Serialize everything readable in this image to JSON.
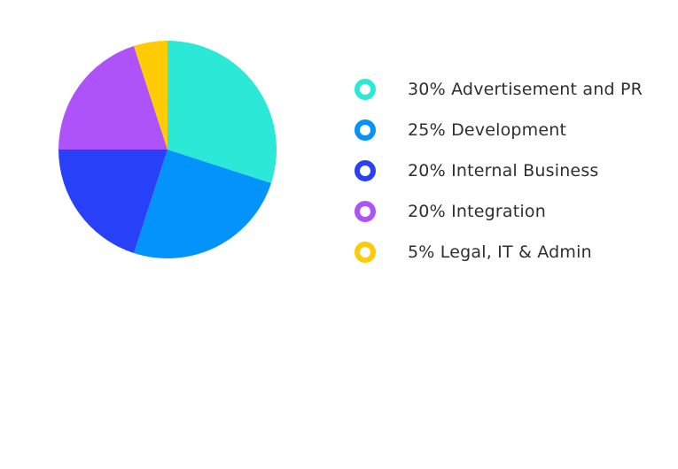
{
  "chart_data": {
    "type": "pie",
    "title": "",
    "categories": [
      "30% Advertisement and PR",
      "25% Development",
      "20% Internal Business",
      "20% Integration",
      "5% Legal, IT & Admin"
    ],
    "values": [
      30,
      25,
      20,
      20,
      5
    ],
    "colors": [
      "#2CE8D7",
      "#0393FB",
      "#2841F8",
      "#AE52FA",
      "#FFCB05"
    ],
    "start_angle": "12 o'clock",
    "direction": "clockwise",
    "legend_position": "right"
  },
  "legend": {
    "items": [
      {
        "label": "30% Advertisement and PR",
        "color": "#2CE8D7"
      },
      {
        "label": "25% Development",
        "color": "#0393FB"
      },
      {
        "label": "20% Internal Business",
        "color": "#2841F8"
      },
      {
        "label": "20% Integration",
        "color": "#AE52FA"
      },
      {
        "label": "5% Legal, IT & Admin",
        "color": "#FFCB05"
      }
    ]
  }
}
